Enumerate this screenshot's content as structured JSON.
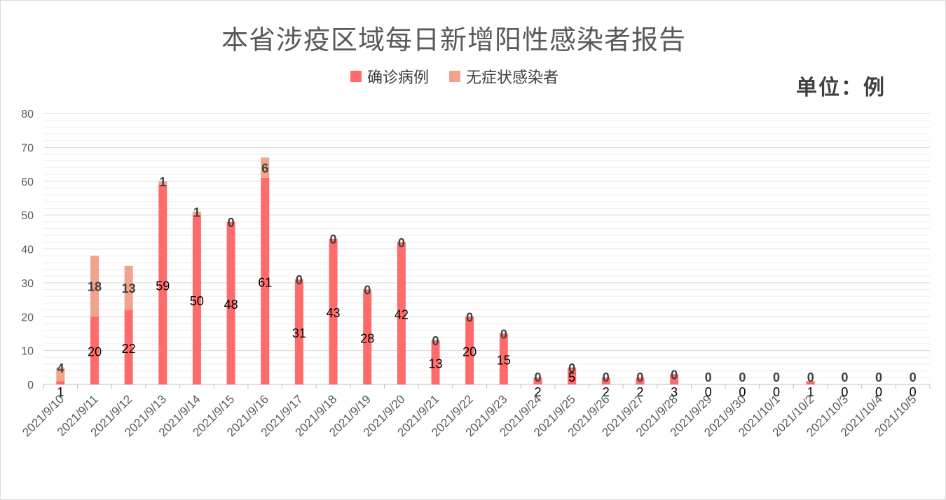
{
  "chart_data": {
    "type": "bar",
    "stacked": true,
    "title": "本省涉疫区域每日新增阳性感染者报告",
    "unit_label": "单位：例",
    "ylim": [
      0,
      80
    ],
    "yticks": [
      0,
      10,
      20,
      30,
      40,
      50,
      60,
      70,
      80
    ],
    "grid": true,
    "legend_position": "top",
    "categories": [
      "2021/9/10",
      "2021/9/11",
      "2021/9/12",
      "2021/9/13",
      "2021/9/14",
      "2021/9/15",
      "2021/9/16",
      "2021/9/17",
      "2021/9/18",
      "2021/9/19",
      "2021/9/20",
      "2021/9/21",
      "2021/9/22",
      "2021/9/23",
      "2021/9/24",
      "2021/9/25",
      "2021/9/26",
      "2021/9/27",
      "2021/9/28",
      "2021/9/29",
      "2021/9/30",
      "2021/10/1",
      "2021/10/2",
      "2021/10/3",
      "2021/10/4",
      "2021/10/5"
    ],
    "series": [
      {
        "name": "确诊病例",
        "color": "#ff6b6b",
        "values": [
          1,
          20,
          22,
          59,
          50,
          48,
          61,
          31,
          43,
          28,
          42,
          13,
          20,
          15,
          2,
          5,
          2,
          2,
          3,
          0,
          0,
          0,
          1,
          0,
          0,
          0
        ]
      },
      {
        "name": "无症状感染者",
        "color": "#f0a48c",
        "values": [
          4,
          18,
          13,
          1,
          1,
          0,
          6,
          0,
          0,
          0,
          0,
          0,
          0,
          0,
          0,
          0,
          0,
          0,
          0,
          0,
          0,
          0,
          0,
          0,
          0,
          0
        ]
      }
    ]
  }
}
